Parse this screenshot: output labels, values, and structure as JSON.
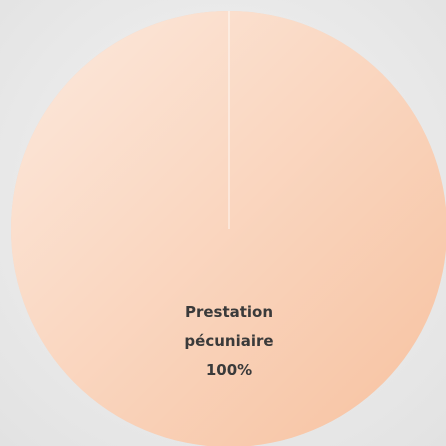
{
  "chart_data": {
    "type": "pie",
    "categories": [
      "Prestation pécuniaire"
    ],
    "values": [
      100
    ],
    "value_labels": [
      "100%"
    ],
    "colors": [
      "#f7c19f"
    ]
  }
}
